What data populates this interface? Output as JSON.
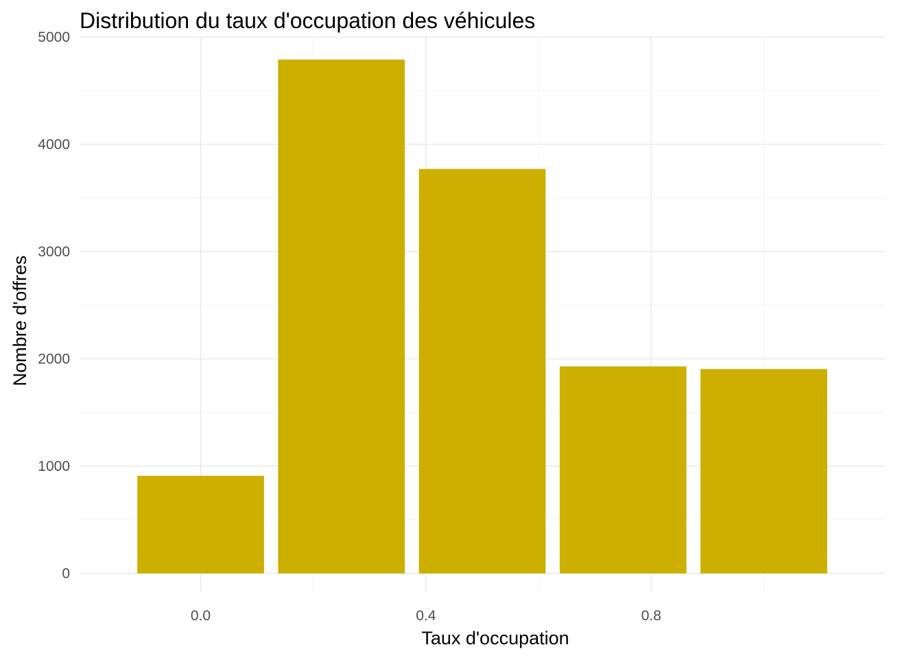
{
  "chart_data": {
    "type": "bar",
    "title": "Distribution du taux d'occupation des véhicules",
    "xlabel": "Taux d'occupation",
    "ylabel": "Nombre d'offres",
    "x": [
      0.0,
      0.25,
      0.5,
      0.75,
      1.0
    ],
    "values": [
      910,
      4790,
      3770,
      1930,
      1905
    ],
    "bar_color": "#CCAF00",
    "xlim": [
      -0.215,
      1.215
    ],
    "ylim": [
      -175,
      5000
    ],
    "x_ticks": [
      0.0,
      0.4,
      0.8
    ],
    "x_tick_labels": [
      "0.0",
      "0.4",
      "0.8"
    ],
    "y_ticks": [
      0,
      1000,
      2000,
      3000,
      4000,
      5000
    ],
    "y_tick_labels": [
      "0",
      "1000",
      "2000",
      "3000",
      "4000",
      "5000"
    ],
    "grid": true,
    "legend": "none"
  }
}
